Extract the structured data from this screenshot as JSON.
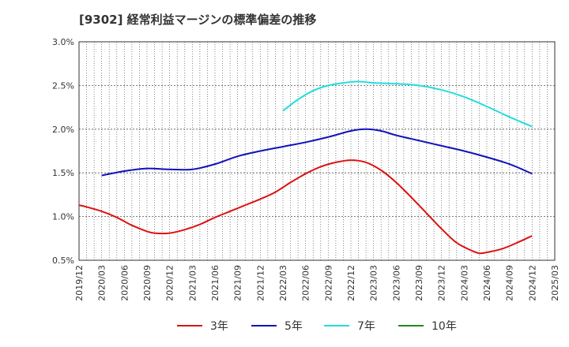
{
  "chart_data": {
    "type": "line",
    "title": "[9302]  経常利益マージンの標準偏差の推移",
    "xlabel": "",
    "ylabel": "",
    "ylim": [
      0.5,
      3.0
    ],
    "yticks": [
      0.5,
      1.0,
      1.5,
      2.0,
      2.5,
      3.0
    ],
    "ytick_labels": [
      "0.5%",
      "1.0%",
      "1.5%",
      "2.0%",
      "2.5%",
      "3.0%"
    ],
    "xlim": [
      "2019/12",
      "2025/03"
    ],
    "xtick_labels": [
      "2019/12",
      "2020/03",
      "2020/06",
      "2020/09",
      "2020/12",
      "2021/03",
      "2021/06",
      "2021/09",
      "2021/12",
      "2022/03",
      "2022/06",
      "2022/09",
      "2022/12",
      "2023/03",
      "2023/06",
      "2023/09",
      "2023/12",
      "2024/03",
      "2024/06",
      "2024/09",
      "2024/12",
      "2025/03"
    ],
    "grid": true,
    "legend_position": "bottom",
    "series": [
      {
        "name": "3年",
        "color": "#dd1111",
        "points": [
          [
            "2019/12",
            1.13
          ],
          [
            "2020/01",
            1.11
          ],
          [
            "2020/03",
            1.06
          ],
          [
            "2020/05",
            0.99
          ],
          [
            "2020/07",
            0.9
          ],
          [
            "2020/09",
            0.83
          ],
          [
            "2020/10",
            0.81
          ],
          [
            "2020/12",
            0.81
          ],
          [
            "2021/02",
            0.85
          ],
          [
            "2021/04",
            0.91
          ],
          [
            "2021/06",
            0.99
          ],
          [
            "2021/08",
            1.06
          ],
          [
            "2021/10",
            1.13
          ],
          [
            "2021/12",
            1.2
          ],
          [
            "2022/02",
            1.28
          ],
          [
            "2022/04",
            1.39
          ],
          [
            "2022/06",
            1.49
          ],
          [
            "2022/08",
            1.57
          ],
          [
            "2022/10",
            1.62
          ],
          [
            "2022/12",
            1.645
          ],
          [
            "2023/02",
            1.62
          ],
          [
            "2023/04",
            1.53
          ],
          [
            "2023/06",
            1.39
          ],
          [
            "2023/08",
            1.22
          ],
          [
            "2023/10",
            1.04
          ],
          [
            "2023/12",
            0.86
          ],
          [
            "2024/02",
            0.7
          ],
          [
            "2024/04",
            0.61
          ],
          [
            "2024/05",
            0.58
          ],
          [
            "2024/06",
            0.59
          ],
          [
            "2024/08",
            0.63
          ],
          [
            "2024/10",
            0.7
          ],
          [
            "2024/12",
            0.78
          ]
        ]
      },
      {
        "name": "5年",
        "color": "#1111bb",
        "points": [
          [
            "2020/03",
            1.47
          ],
          [
            "2020/06",
            1.52
          ],
          [
            "2020/09",
            1.55
          ],
          [
            "2020/12",
            1.54
          ],
          [
            "2021/03",
            1.54
          ],
          [
            "2021/06",
            1.6
          ],
          [
            "2021/09",
            1.69
          ],
          [
            "2021/12",
            1.75
          ],
          [
            "2022/03",
            1.8
          ],
          [
            "2022/06",
            1.85
          ],
          [
            "2022/09",
            1.91
          ],
          [
            "2022/12",
            1.98
          ],
          [
            "2023/02",
            2.0
          ],
          [
            "2023/04",
            1.98
          ],
          [
            "2023/06",
            1.93
          ],
          [
            "2023/09",
            1.87
          ],
          [
            "2023/12",
            1.81
          ],
          [
            "2024/03",
            1.75
          ],
          [
            "2024/06",
            1.68
          ],
          [
            "2024/09",
            1.6
          ],
          [
            "2024/12",
            1.49
          ]
        ]
      },
      {
        "name": "7年",
        "color": "#22dddd",
        "points": [
          [
            "2022/03",
            2.21
          ],
          [
            "2022/05",
            2.34
          ],
          [
            "2022/07",
            2.44
          ],
          [
            "2022/09",
            2.5
          ],
          [
            "2022/11",
            2.53
          ],
          [
            "2023/01",
            2.545
          ],
          [
            "2023/03",
            2.53
          ],
          [
            "2023/06",
            2.52
          ],
          [
            "2023/09",
            2.5
          ],
          [
            "2023/12",
            2.45
          ],
          [
            "2024/03",
            2.37
          ],
          [
            "2024/06",
            2.26
          ],
          [
            "2024/09",
            2.14
          ],
          [
            "2024/12",
            2.03
          ]
        ]
      },
      {
        "name": "10年",
        "color": "#228822",
        "points": []
      }
    ]
  }
}
